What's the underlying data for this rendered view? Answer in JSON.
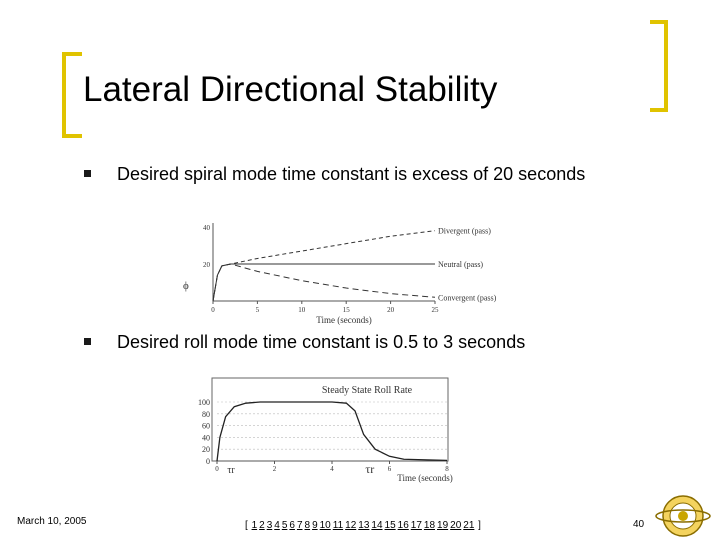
{
  "slide": {
    "title": "Lateral Directional Stability",
    "bullets": [
      "Desired spiral mode time constant is excess of 20 seconds",
      "Desired roll mode time constant is 0.5 to 3 seconds"
    ],
    "footer_date": "March 10, 2005",
    "page_number": "40",
    "nav_open": "[",
    "nav_close": "]",
    "nav_links": [
      "1",
      "2",
      "3",
      "4",
      "5",
      "6",
      "7",
      "8",
      "9",
      "10",
      "11",
      "12",
      "13",
      "14",
      "15",
      "16",
      "17",
      "18",
      "19",
      "20",
      "21"
    ]
  },
  "colors": {
    "bracket": "#e0c300",
    "bullet": "#1a1a1a"
  },
  "chart_data": [
    {
      "type": "line",
      "ylabel": "ϕ",
      "xlabel": "Time (seconds)",
      "x_ticks": [
        "0",
        "5",
        "10",
        "15",
        "20",
        "25"
      ],
      "y_ticks": [
        "20",
        "40"
      ],
      "xlim": [
        0,
        25
      ],
      "ylim": [
        0,
        40
      ],
      "series": [
        {
          "name": "Divergent (pass)",
          "x": [
            0,
            0.5,
            1,
            2,
            5,
            10,
            15,
            20,
            25
          ],
          "y": [
            0,
            14,
            19,
            20,
            23,
            27,
            31,
            35,
            38
          ]
        },
        {
          "name": "Neutral (pass)",
          "x": [
            0,
            0.5,
            1,
            2,
            5,
            10,
            15,
            20,
            25
          ],
          "y": [
            0,
            14,
            19,
            20,
            20,
            20,
            20,
            20,
            20
          ]
        },
        {
          "name": "Convergent (pass)",
          "x": [
            0,
            0.5,
            1,
            2,
            5,
            10,
            15,
            20,
            25
          ],
          "y": [
            0,
            14,
            19,
            20,
            16,
            11,
            7,
            4,
            2
          ]
        }
      ]
    },
    {
      "type": "line",
      "title": "Steady State Roll Rate",
      "xlabel": "Time (seconds)",
      "x_ticks": [
        "0",
        "2",
        "4",
        "6",
        "8"
      ],
      "y_ticks": [
        "0",
        "20",
        "40",
        "60",
        "80",
        "100"
      ],
      "annotations": [
        "τr",
        "τr"
      ],
      "xlim": [
        0,
        8
      ],
      "ylim": [
        0,
        100
      ],
      "series": [
        {
          "name": "",
          "x": [
            0,
            0.1,
            0.3,
            0.6,
            1,
            1.5,
            2,
            3,
            4,
            4.5,
            4.8,
            5.1,
            5.5,
            6,
            6.5,
            8
          ],
          "y": [
            0,
            40,
            75,
            92,
            98,
            100,
            100,
            100,
            100,
            98,
            85,
            45,
            20,
            8,
            3,
            1
          ]
        }
      ]
    }
  ]
}
